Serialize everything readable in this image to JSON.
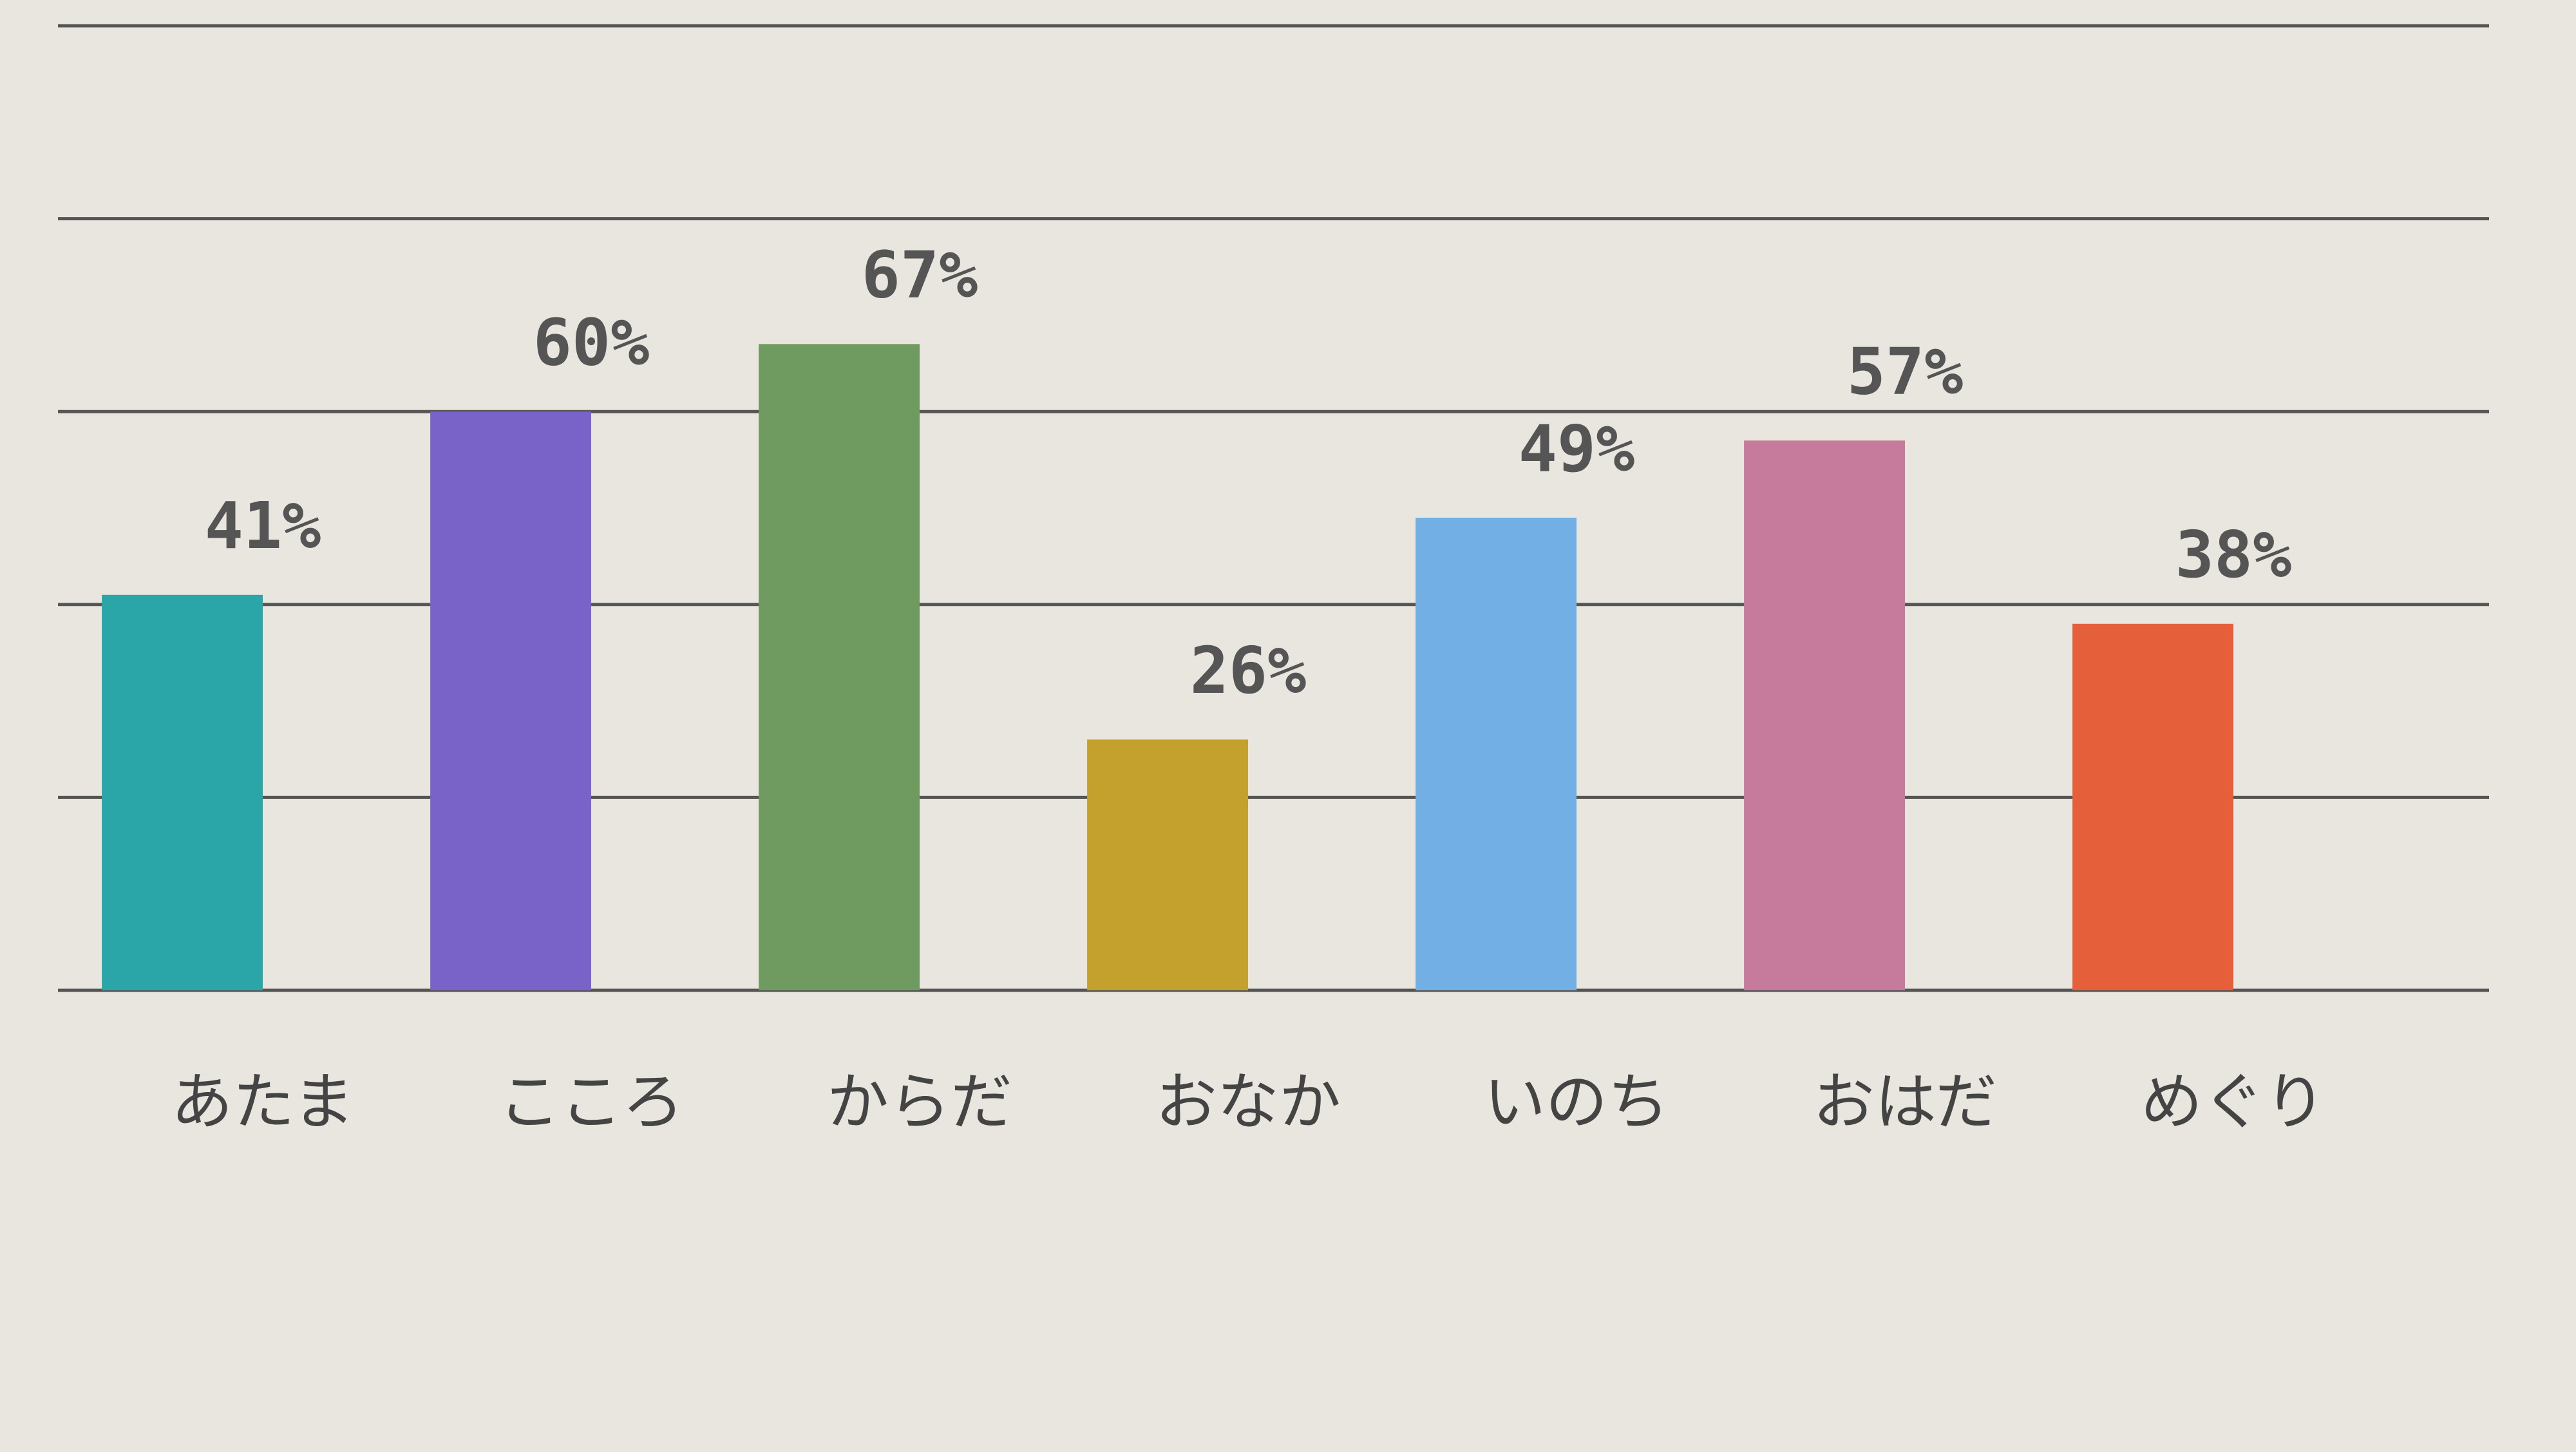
{
  "chart_data": {
    "type": "bar",
    "categories": [
      "あたま",
      "こころ",
      "からだ",
      "おなか",
      "いのち",
      "おはだ",
      "めぐり"
    ],
    "values": [
      41,
      60,
      67,
      26,
      49,
      57,
      38
    ],
    "value_labels": [
      "41%",
      "60%",
      "67%",
      "26%",
      "49%",
      "57%",
      "38%"
    ],
    "colors": [
      "#2aa5a8",
      "#7a63c8",
      "#6f9a60",
      "#c4a02c",
      "#72afe4",
      "#c67b9d",
      "#e5603a"
    ],
    "ylim": [
      0,
      100
    ],
    "yticks": [
      0,
      20,
      40,
      60,
      80,
      100
    ],
    "grid": true
  }
}
